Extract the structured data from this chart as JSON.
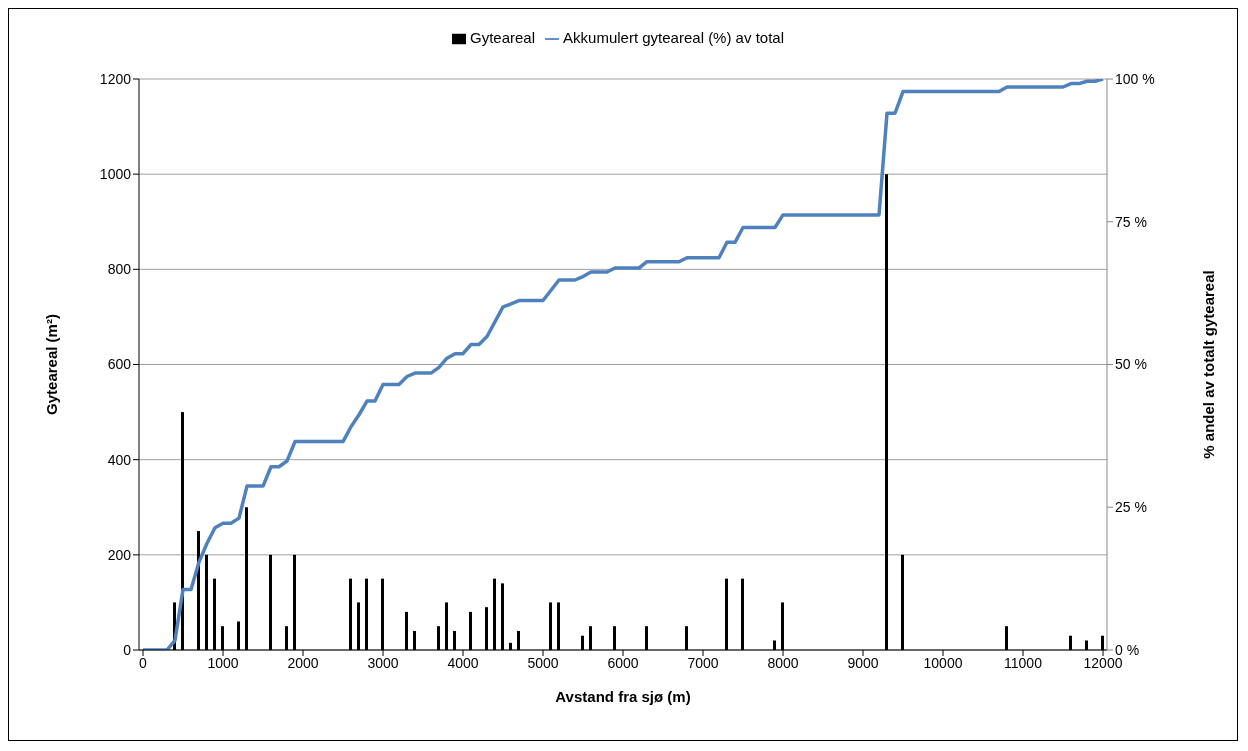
{
  "chart_data": {
    "type": "bar",
    "xlabel": "Avstand fra sjø (m)",
    "ylabel": "Gyteareal (m²)",
    "y2label": "% andel av totalt gyteareal",
    "xlim": [
      -50,
      12050
    ],
    "xticks": [
      0,
      1000,
      2000,
      3000,
      4000,
      5000,
      6000,
      7000,
      8000,
      9000,
      10000,
      11000,
      12000
    ],
    "ylim": [
      0,
      1200
    ],
    "yticks": [
      0,
      200,
      400,
      600,
      800,
      1000,
      1200
    ],
    "y2lim": [
      0,
      100
    ],
    "y2ticks": [
      {
        "value": 0,
        "label": "0 %"
      },
      {
        "value": 25,
        "label": "25 %"
      },
      {
        "value": 50,
        "label": "50 %"
      },
      {
        "value": 75,
        "label": "75 %"
      },
      {
        "value": 100,
        "label": "100 %"
      }
    ],
    "grid": "y",
    "legend": "top",
    "series": [
      {
        "name": "Gyteareal",
        "color": "#000000",
        "x": [
          400,
          500,
          700,
          800,
          900,
          1000,
          1200,
          1300,
          1600,
          1800,
          1900,
          2600,
          2700,
          2800,
          3000,
          3300,
          3400,
          3700,
          3800,
          3900,
          4100,
          4300,
          4400,
          4500,
          4600,
          4700,
          5100,
          5200,
          5500,
          5600,
          5900,
          6300,
          6800,
          7300,
          7500,
          7900,
          8000,
          9300,
          9500,
          10800,
          11600,
          11800,
          12000
        ],
        "values": [
          100,
          500,
          250,
          200,
          150,
          50,
          60,
          300,
          200,
          50,
          200,
          150,
          100,
          150,
          150,
          80,
          40,
          50,
          100,
          40,
          80,
          90,
          150,
          140,
          15,
          40,
          100,
          100,
          30,
          50,
          50,
          50,
          50,
          150,
          150,
          20,
          100,
          1000,
          200,
          50,
          30,
          20,
          30
        ]
      },
      {
        "name": "Akkumulert gyteareal (%) av total",
        "type": "line",
        "axis": "y2",
        "color": "#4f81bd",
        "x": [
          0,
          300,
          400,
          500,
          600,
          700,
          800,
          900,
          1000,
          1100,
          1200,
          1300,
          1500,
          1600,
          1700,
          1800,
          1900,
          2500,
          2600,
          2700,
          2800,
          2900,
          3000,
          3200,
          3300,
          3400,
          3600,
          3700,
          3800,
          3900,
          4000,
          4100,
          4200,
          4300,
          4500,
          4600,
          4700,
          5000,
          5200,
          5400,
          5500,
          5600,
          5800,
          5900,
          6200,
          6300,
          6700,
          6800,
          7200,
          7300,
          7400,
          7500,
          7900,
          8000,
          9200,
          9300,
          9400,
          9500,
          10700,
          10800,
          11500,
          11600,
          11700,
          11800,
          11900,
          12000
        ],
        "values": [
          0,
          0,
          1.7,
          10.6,
          10.6,
          15.4,
          18.7,
          21.4,
          22.2,
          22.2,
          23.1,
          28.7,
          28.7,
          32.1,
          32.1,
          33.1,
          36.5,
          36.5,
          39.1,
          41.2,
          43.6,
          43.6,
          46.5,
          46.5,
          47.9,
          48.5,
          48.5,
          49.5,
          51.1,
          51.9,
          51.9,
          53.5,
          53.5,
          54.9,
          60.1,
          60.6,
          61.2,
          61.2,
          64.8,
          64.8,
          65.4,
          66.2,
          66.2,
          66.9,
          66.9,
          68.0,
          68.0,
          68.7,
          68.7,
          71.4,
          71.4,
          74.0,
          74.0,
          76.2,
          76.2,
          94.0,
          94.0,
          97.8,
          97.8,
          98.6,
          98.6,
          99.2,
          99.2,
          99.6,
          99.6,
          100
        ]
      }
    ]
  }
}
